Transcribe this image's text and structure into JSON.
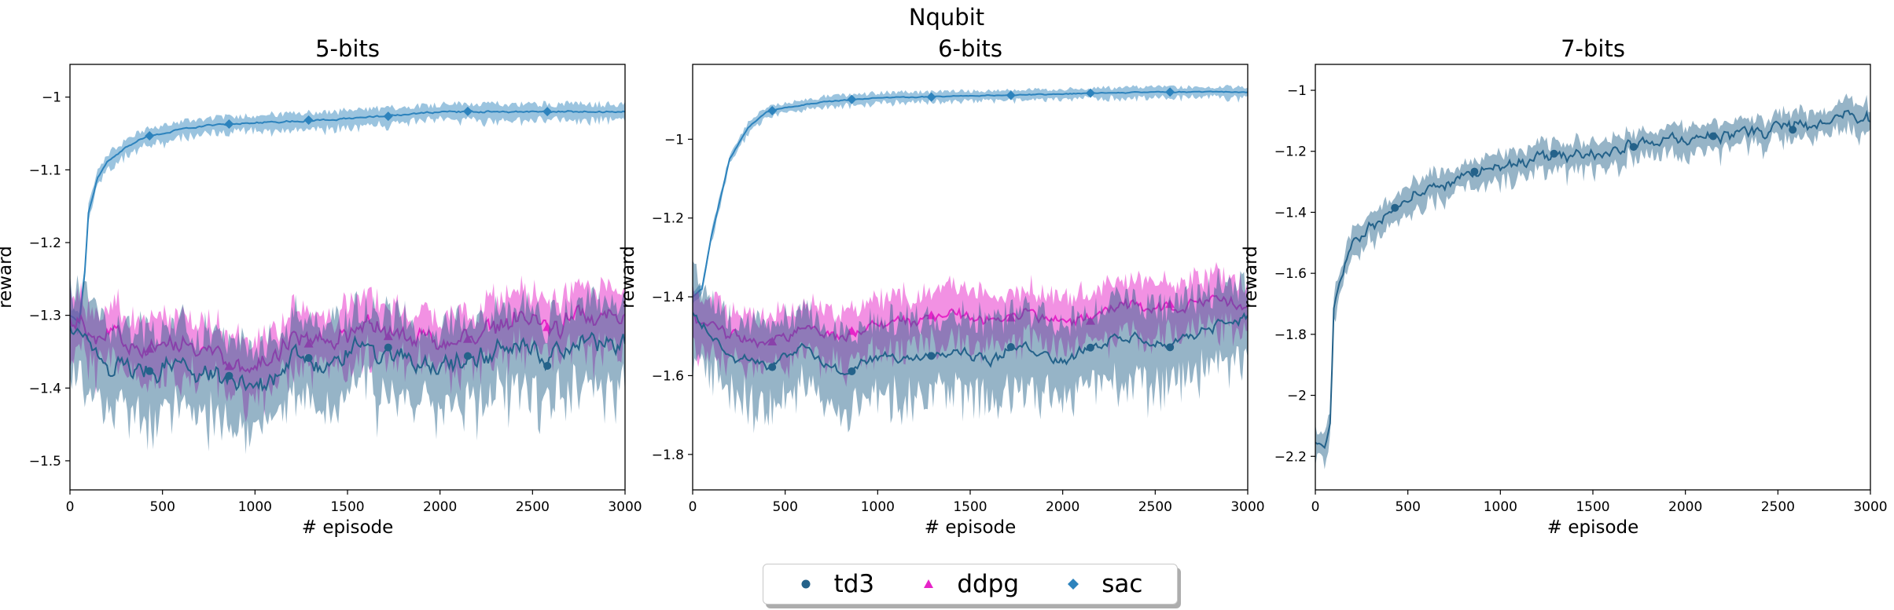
{
  "figure": {
    "suptitle": "Nqubit"
  },
  "colors": {
    "td3": "#24628a",
    "ddpg": "#e624c8",
    "sac": "#2d83bd"
  },
  "legend": [
    {
      "name": "td3",
      "marker": "circle"
    },
    {
      "name": "ddpg",
      "marker": "triangle"
    },
    {
      "name": "sac",
      "marker": "diamond"
    }
  ],
  "chart_data": [
    {
      "type": "line",
      "title": "5-bits",
      "xlabel": "# episode",
      "ylabel": "reward",
      "xlim": [
        0,
        3000
      ],
      "ylim": [
        -1.54,
        -0.955
      ],
      "xticks": [
        0,
        500,
        1000,
        1500,
        2000,
        2500,
        3000
      ],
      "yticks": [
        -1.5,
        -1.4,
        -1.3,
        -1.2,
        -1.1,
        -1.0
      ],
      "grid": false,
      "series": [
        {
          "name": "sac",
          "x": [
            0,
            50,
            80,
            100,
            150,
            200,
            300,
            400,
            500,
            700,
            1000,
            1500,
            2000,
            2500,
            3000
          ],
          "y": [
            -1.3,
            -1.31,
            -1.24,
            -1.16,
            -1.11,
            -1.09,
            -1.07,
            -1.055,
            -1.05,
            -1.04,
            -1.035,
            -1.03,
            -1.02,
            -1.02,
            -1.02
          ],
          "band": 0.01
        },
        {
          "name": "ddpg",
          "x": [
            0,
            200,
            400,
            600,
            800,
            1000,
            1200,
            1400,
            1600,
            1800,
            2000,
            2200,
            2400,
            2600,
            2800,
            3000
          ],
          "y": [
            -1.31,
            -1.33,
            -1.35,
            -1.34,
            -1.35,
            -1.38,
            -1.33,
            -1.34,
            -1.31,
            -1.33,
            -1.34,
            -1.33,
            -1.3,
            -1.32,
            -1.3,
            -1.3
          ],
          "band": 0.035
        },
        {
          "name": "td3",
          "x": [
            0,
            200,
            400,
            600,
            800,
            1000,
            1200,
            1400,
            1600,
            1800,
            2000,
            2200,
            2400,
            2600,
            2800,
            3000
          ],
          "y": [
            -1.32,
            -1.37,
            -1.38,
            -1.37,
            -1.39,
            -1.4,
            -1.36,
            -1.37,
            -1.34,
            -1.36,
            -1.37,
            -1.36,
            -1.34,
            -1.36,
            -1.33,
            -1.34
          ],
          "band": 0.05
        }
      ]
    },
    {
      "type": "line",
      "title": "6-bits",
      "xlabel": "# episode",
      "ylabel": "reward",
      "xlim": [
        0,
        3000
      ],
      "ylim": [
        -1.89,
        -0.81
      ],
      "xticks": [
        0,
        500,
        1000,
        1500,
        2000,
        2500,
        3000
      ],
      "yticks": [
        -1.8,
        -1.6,
        -1.4,
        -1.2,
        -1.0
      ],
      "grid": false,
      "series": [
        {
          "name": "sac",
          "x": [
            0,
            50,
            100,
            150,
            200,
            300,
            400,
            500,
            700,
            1000,
            1500,
            2000,
            2500,
            3000
          ],
          "y": [
            -1.4,
            -1.38,
            -1.25,
            -1.15,
            -1.05,
            -0.97,
            -0.93,
            -0.92,
            -0.905,
            -0.895,
            -0.89,
            -0.885,
            -0.88,
            -0.88
          ],
          "band": 0.012
        },
        {
          "name": "ddpg",
          "x": [
            0,
            200,
            400,
            600,
            800,
            1000,
            1200,
            1400,
            1600,
            1800,
            2000,
            2200,
            2400,
            2600,
            2800,
            3000
          ],
          "y": [
            -1.45,
            -1.5,
            -1.52,
            -1.48,
            -1.5,
            -1.47,
            -1.46,
            -1.44,
            -1.46,
            -1.43,
            -1.47,
            -1.44,
            -1.42,
            -1.44,
            -1.4,
            -1.42
          ],
          "band": 0.06
        },
        {
          "name": "td3",
          "x": [
            0,
            200,
            400,
            600,
            800,
            1000,
            1200,
            1400,
            1600,
            1800,
            2000,
            2200,
            2400,
            2600,
            2800,
            3000
          ],
          "y": [
            -1.45,
            -1.55,
            -1.58,
            -1.52,
            -1.6,
            -1.56,
            -1.55,
            -1.53,
            -1.56,
            -1.52,
            -1.56,
            -1.52,
            -1.5,
            -1.53,
            -1.47,
            -1.45
          ],
          "band": 0.09
        }
      ]
    },
    {
      "type": "line",
      "title": "7-bits",
      "xlabel": "# episode",
      "ylabel": "reward",
      "xlim": [
        0,
        3000
      ],
      "ylim": [
        -2.31,
        -0.915
      ],
      "xticks": [
        0,
        500,
        1000,
        1500,
        2000,
        2500,
        3000
      ],
      "yticks": [
        -2.2,
        -2.0,
        -1.8,
        -1.6,
        -1.4,
        -1.2,
        -1.0
      ],
      "grid": false,
      "series": [
        {
          "name": "td3",
          "x": [
            0,
            50,
            80,
            100,
            150,
            200,
            300,
            400,
            500,
            700,
            900,
            1000,
            1200,
            1400,
            1600,
            1800,
            2000,
            2200,
            2400,
            2600,
            2800,
            2900,
            3000
          ],
          "y": [
            -2.15,
            -2.17,
            -2.1,
            -1.72,
            -1.6,
            -1.5,
            -1.45,
            -1.4,
            -1.36,
            -1.31,
            -1.27,
            -1.25,
            -1.23,
            -1.21,
            -1.19,
            -1.17,
            -1.16,
            -1.15,
            -1.14,
            -1.12,
            -1.1,
            -1.07,
            -1.09
          ],
          "band": 0.04
        }
      ]
    }
  ]
}
